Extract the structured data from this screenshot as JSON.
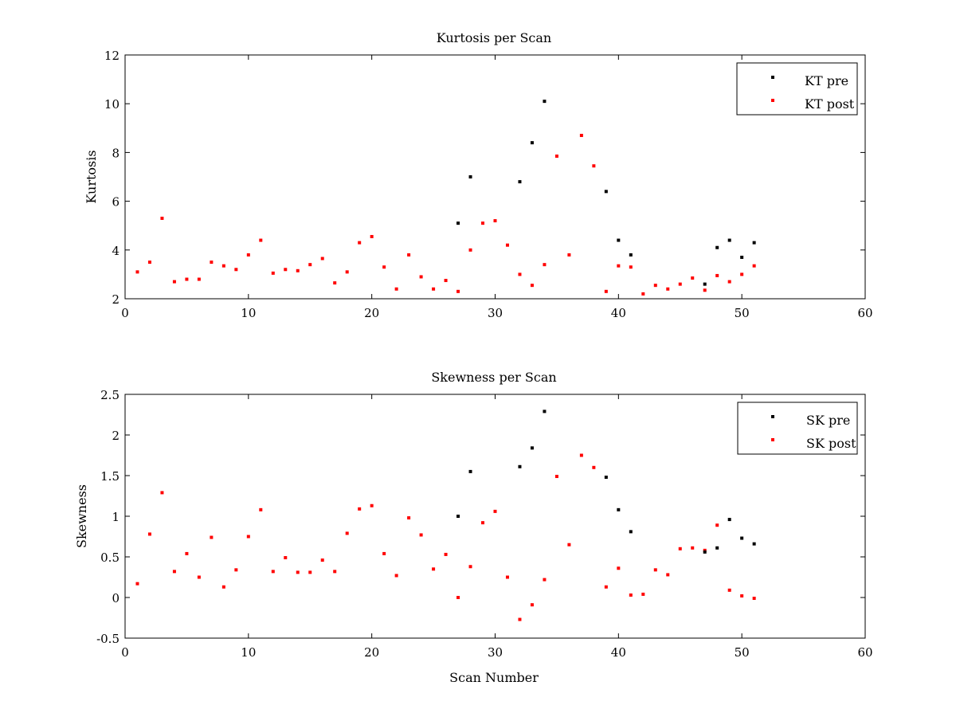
{
  "chart_data": [
    {
      "type": "scatter",
      "title": "Kurtosis per Scan",
      "xlabel": "",
      "ylabel": "Kurtosis",
      "xlim": [
        0,
        60
      ],
      "ylim": [
        2,
        12
      ],
      "xticks": [
        0,
        10,
        20,
        30,
        40,
        50,
        60
      ],
      "yticks": [
        2,
        4,
        6,
        8,
        10,
        12
      ],
      "xtick_labels": [
        "0",
        "10",
        "20",
        "30",
        "40",
        "50",
        "60"
      ],
      "ytick_labels": [
        "2",
        "4",
        "6",
        "8",
        "10",
        "12"
      ],
      "grid": false,
      "legend_position": "top-right",
      "series": [
        {
          "name": "KT pre",
          "color": "#000000",
          "x": [
            27,
            28,
            32,
            33,
            34,
            39,
            40,
            41,
            47,
            48,
            49,
            50,
            51
          ],
          "y": [
            5.1,
            7.0,
            6.8,
            8.4,
            10.1,
            6.4,
            4.4,
            3.8,
            2.6,
            4.1,
            4.4,
            3.7,
            4.3
          ]
        },
        {
          "name": "KT post",
          "color": "#ff0000",
          "x": [
            1,
            2,
            3,
            4,
            5,
            6,
            7,
            8,
            9,
            10,
            11,
            12,
            13,
            14,
            15,
            16,
            17,
            18,
            19,
            20,
            21,
            22,
            23,
            24,
            25,
            26,
            27,
            28,
            29,
            30,
            31,
            32,
            33,
            34,
            35,
            36,
            37,
            38,
            39,
            40,
            41,
            42,
            43,
            44,
            45,
            46,
            47,
            48,
            49,
            50,
            51
          ],
          "y": [
            3.1,
            3.5,
            5.3,
            2.7,
            2.8,
            2.8,
            3.5,
            3.35,
            3.2,
            3.8,
            4.4,
            3.05,
            3.2,
            3.15,
            3.4,
            3.65,
            2.65,
            3.1,
            4.3,
            4.55,
            3.3,
            2.4,
            3.8,
            2.9,
            2.4,
            2.75,
            2.3,
            4.0,
            5.1,
            5.2,
            4.2,
            3.0,
            2.55,
            3.4,
            7.85,
            3.8,
            8.7,
            7.45,
            2.3,
            3.35,
            3.3,
            2.2,
            2.55,
            2.4,
            2.6,
            2.85,
            2.35,
            2.95,
            2.7,
            3.0,
            3.35
          ]
        }
      ]
    },
    {
      "type": "scatter",
      "title": "Skewness per Scan",
      "xlabel": "Scan Number",
      "ylabel": "Skewness",
      "xlim": [
        0,
        60
      ],
      "ylim": [
        -0.5,
        2.5
      ],
      "xticks": [
        0,
        10,
        20,
        30,
        40,
        50,
        60
      ],
      "yticks": [
        -0.5,
        0,
        0.5,
        1,
        1.5,
        2,
        2.5
      ],
      "xtick_labels": [
        "0",
        "10",
        "20",
        "30",
        "40",
        "50",
        "60"
      ],
      "ytick_labels": [
        "-0.5",
        "0",
        "0.5",
        "1",
        "1.5",
        "2",
        "2.5"
      ],
      "grid": false,
      "legend_position": "top-right",
      "series": [
        {
          "name": "SK pre",
          "color": "#000000",
          "x": [
            27,
            28,
            32,
            33,
            34,
            39,
            40,
            41,
            47,
            48,
            49,
            50,
            51
          ],
          "y": [
            1.0,
            1.55,
            1.61,
            1.84,
            2.29,
            1.48,
            1.08,
            0.81,
            0.56,
            0.61,
            0.96,
            0.73,
            0.66
          ]
        },
        {
          "name": "SK post",
          "color": "#ff0000",
          "x": [
            1,
            2,
            3,
            4,
            5,
            6,
            7,
            8,
            9,
            10,
            11,
            12,
            13,
            14,
            15,
            16,
            17,
            18,
            19,
            20,
            21,
            22,
            23,
            24,
            25,
            26,
            27,
            28,
            29,
            30,
            31,
            32,
            33,
            34,
            35,
            36,
            37,
            38,
            39,
            40,
            41,
            42,
            43,
            44,
            45,
            46,
            47,
            48,
            49,
            50,
            51
          ],
          "y": [
            0.17,
            0.78,
            1.29,
            0.32,
            0.54,
            0.25,
            0.74,
            0.13,
            0.34,
            0.75,
            1.08,
            0.32,
            0.49,
            0.31,
            0.31,
            0.46,
            0.32,
            0.79,
            1.09,
            1.13,
            0.54,
            0.27,
            0.98,
            0.77,
            0.35,
            0.53,
            0.0,
            0.38,
            0.92,
            1.06,
            0.25,
            -0.27,
            -0.09,
            0.22,
            1.49,
            0.65,
            1.75,
            1.6,
            0.13,
            0.36,
            0.03,
            0.04,
            0.34,
            0.28,
            0.6,
            0.61,
            0.58,
            0.89,
            0.09,
            0.02,
            -0.01
          ]
        }
      ]
    }
  ]
}
